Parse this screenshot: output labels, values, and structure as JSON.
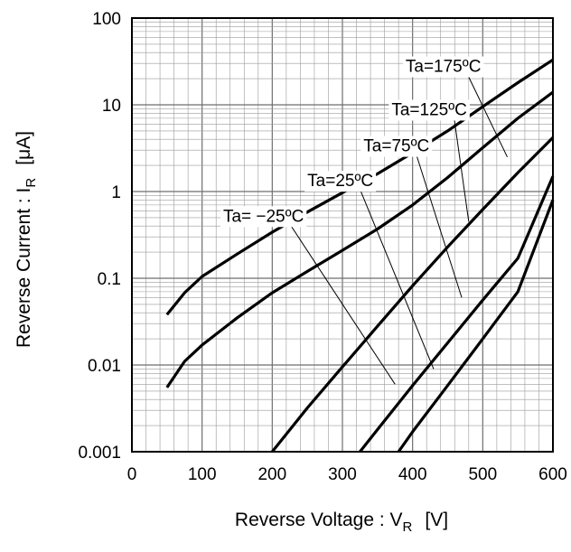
{
  "chart_data": {
    "type": "line",
    "title": "",
    "xlabel": {
      "main": "Reverse Voltage : V",
      "sub": "R",
      "unit": "[V]"
    },
    "ylabel": {
      "main": "Reverse Current : I",
      "sub": "R",
      "unit": "[μA]"
    },
    "xlim": [
      0,
      600
    ],
    "ylim": [
      0.001,
      100
    ],
    "yscale": "log",
    "grid": true,
    "x_ticks": [
      "0",
      "100",
      "200",
      "300",
      "400",
      "500",
      "600"
    ],
    "y_ticks": [
      "0.001",
      "0.01",
      "0.1",
      "1",
      "10",
      "100"
    ],
    "series": [
      {
        "name": "Ta=175ºC",
        "label_at": [
          390,
          24
        ],
        "leader_to": [
          535,
          2.5
        ],
        "points": [
          [
            50,
            0.038
          ],
          [
            75,
            0.068
          ],
          [
            100,
            0.105
          ],
          [
            150,
            0.19
          ],
          [
            200,
            0.34
          ],
          [
            250,
            0.58
          ],
          [
            300,
            0.97
          ],
          [
            350,
            1.6
          ],
          [
            400,
            2.8
          ],
          [
            450,
            5.0
          ],
          [
            500,
            9.5
          ],
          [
            550,
            18
          ],
          [
            600,
            33
          ]
        ]
      },
      {
        "name": "Ta=125ºC",
        "label_at": [
          370,
          7.6
        ],
        "leader_to": [
          480,
          0.45
        ],
        "points": [
          [
            50,
            0.0055
          ],
          [
            75,
            0.011
          ],
          [
            100,
            0.017
          ],
          [
            150,
            0.035
          ],
          [
            200,
            0.068
          ],
          [
            250,
            0.12
          ],
          [
            300,
            0.21
          ],
          [
            350,
            0.37
          ],
          [
            400,
            0.7
          ],
          [
            450,
            1.45
          ],
          [
            500,
            3.2
          ],
          [
            550,
            7.0
          ],
          [
            600,
            14
          ]
        ]
      },
      {
        "name": "Ta=75ºC",
        "label_at": [
          330,
          2.9
        ],
        "leader_to": [
          470,
          0.06
        ],
        "points": [
          [
            200,
            0.001
          ],
          [
            250,
            0.0032
          ],
          [
            300,
            0.0095
          ],
          [
            350,
            0.028
          ],
          [
            400,
            0.082
          ],
          [
            450,
            0.23
          ],
          [
            500,
            0.62
          ],
          [
            550,
            1.65
          ],
          [
            600,
            4.2
          ]
        ]
      },
      {
        "name": "Ta=25ºC",
        "label_at": [
          250,
          1.15
        ],
        "leader_to": [
          430,
          0.009
        ],
        "points": [
          [
            325,
            0.001
          ],
          [
            350,
            0.0018
          ],
          [
            400,
            0.0058
          ],
          [
            450,
            0.018
          ],
          [
            500,
            0.056
          ],
          [
            550,
            0.17
          ],
          [
            600,
            1.5
          ]
        ]
      },
      {
        "name": "Ta= −25ºC",
        "label_at": [
          130,
          0.45
        ],
        "leader_to": [
          375,
          0.006
        ],
        "points": [
          [
            380,
            0.001
          ],
          [
            400,
            0.0017
          ],
          [
            450,
            0.0058
          ],
          [
            500,
            0.02
          ],
          [
            550,
            0.07
          ],
          [
            600,
            0.8
          ]
        ]
      }
    ]
  }
}
